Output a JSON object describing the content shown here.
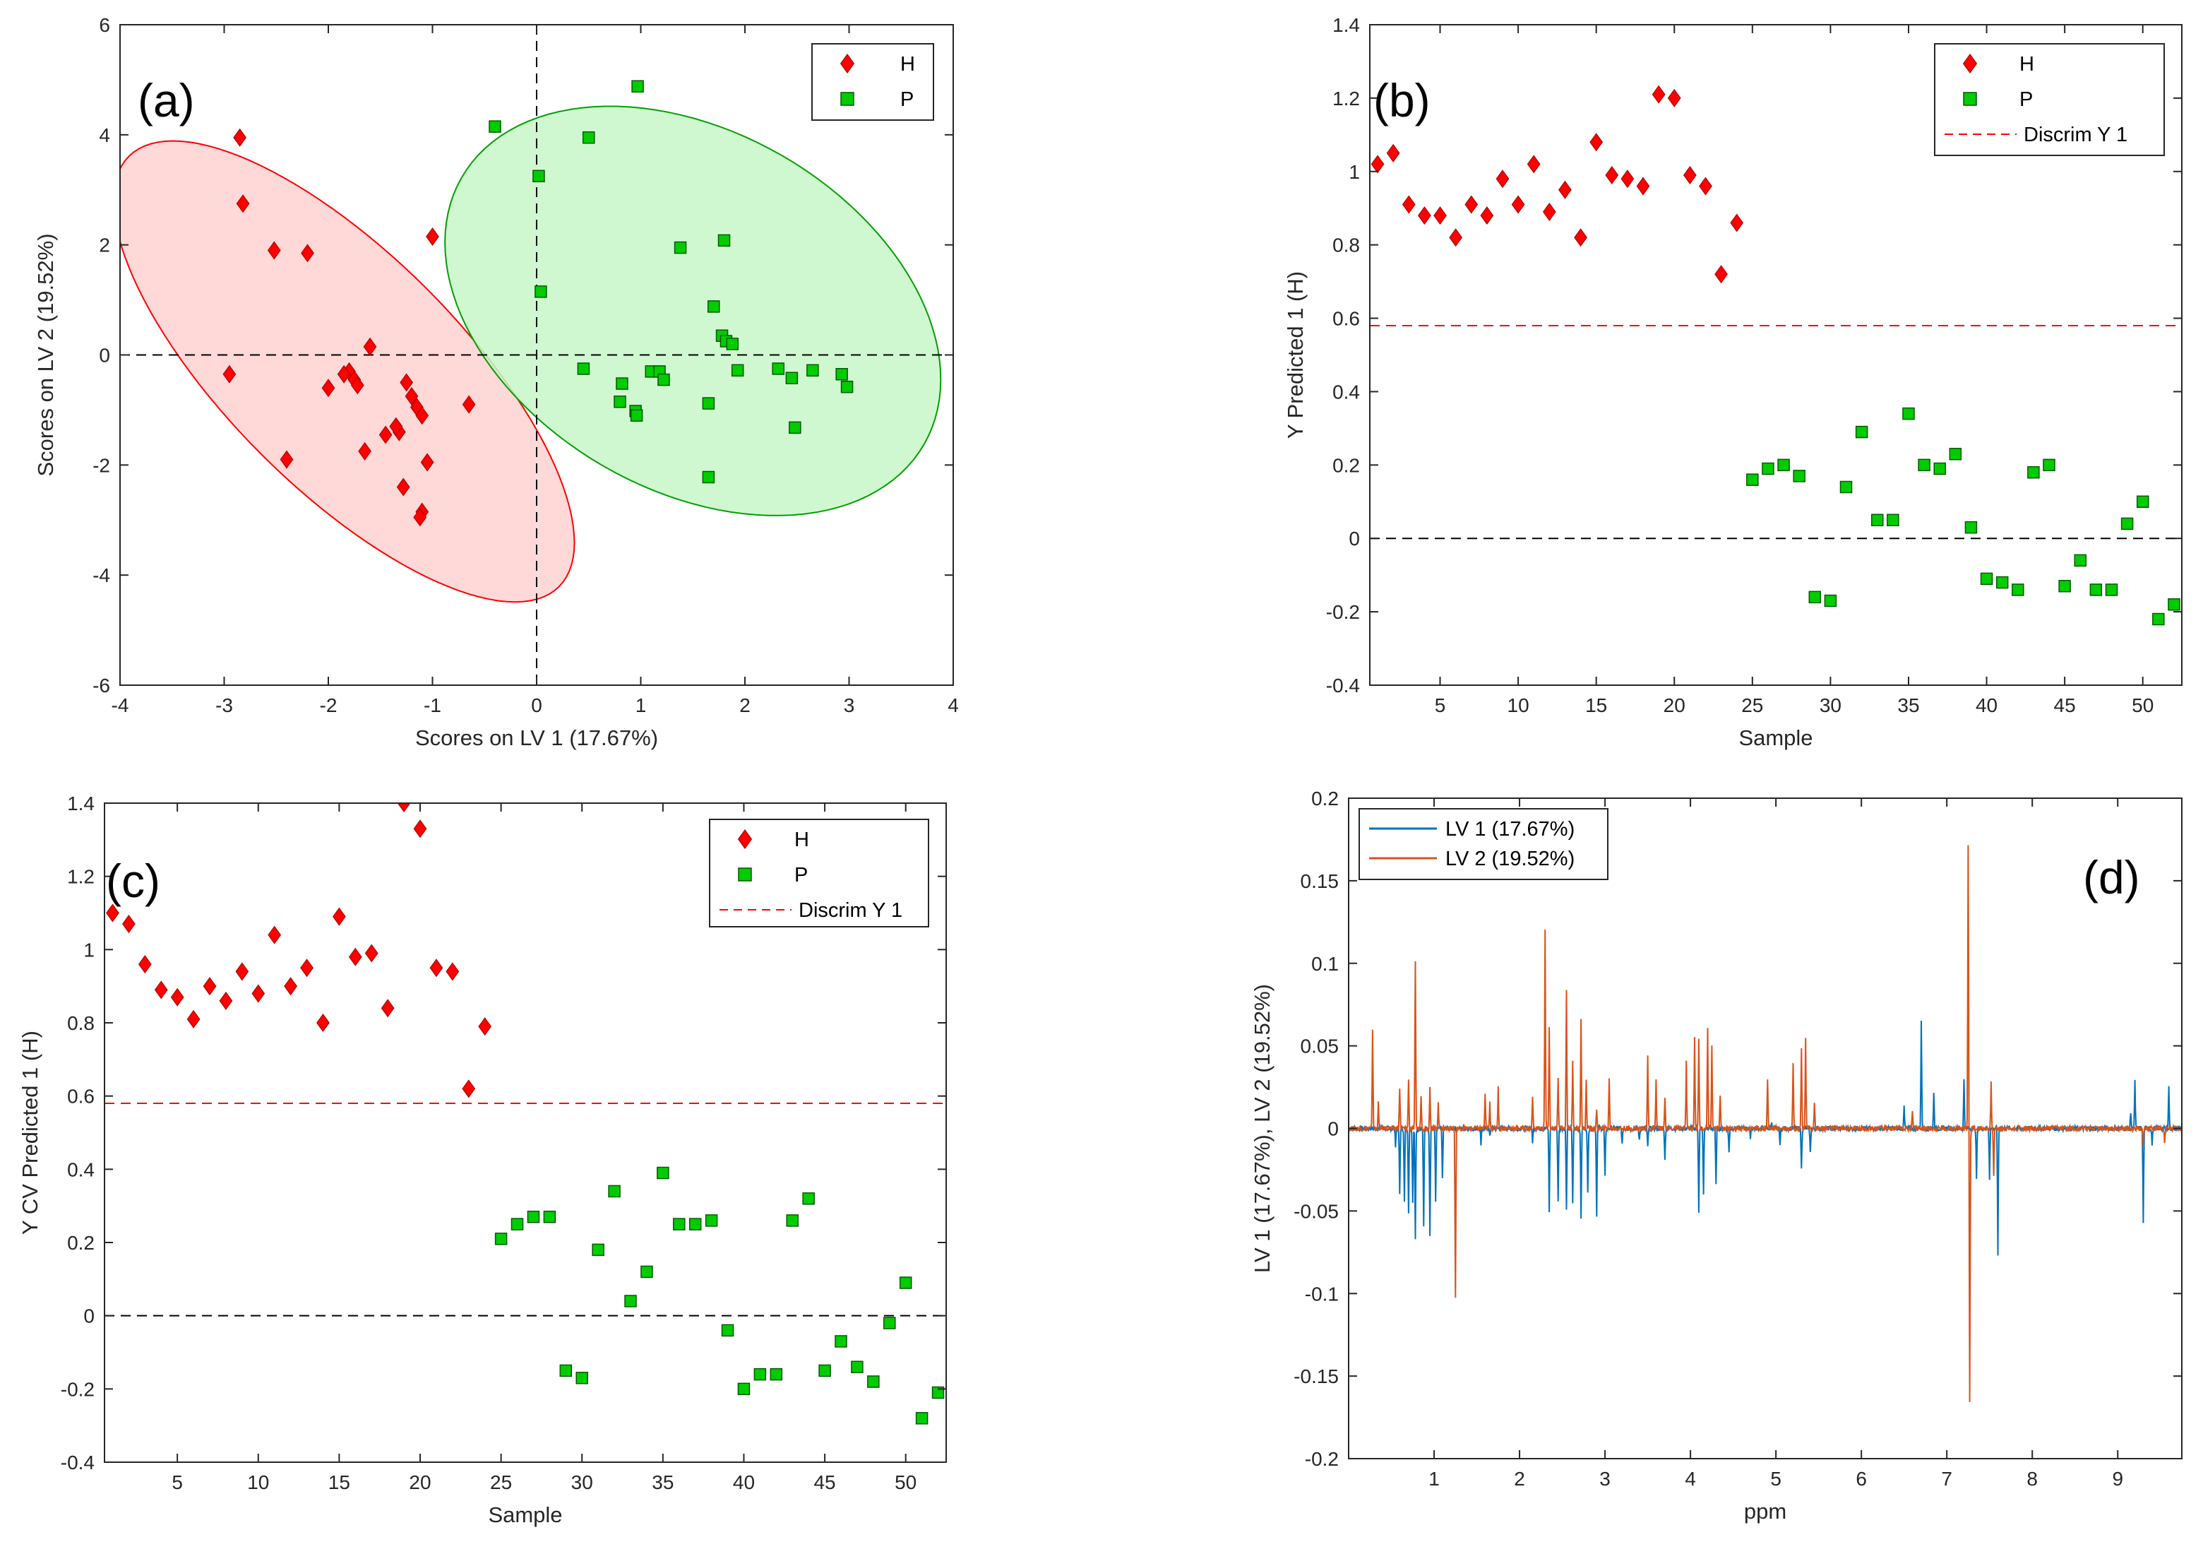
{
  "chart_data": [
    {
      "id": "a",
      "type": "scatter",
      "panel_label": "(a)",
      "xlabel": "Scores on LV 1 (17.67%)",
      "ylabel": "Scores on LV 2 (19.52%)",
      "xlim": [
        -4,
        4
      ],
      "ylim": [
        -6,
        6
      ],
      "xticks": [
        "-4",
        "-3",
        "-2",
        "-1",
        "0",
        "1",
        "2",
        "3",
        "4"
      ],
      "yticks": [
        "-6",
        "-4",
        "-2",
        "0",
        "2",
        "4",
        "6"
      ],
      "reference_lines": {
        "x": 0,
        "y": 0
      },
      "legend": [
        "H",
        "P"
      ],
      "ellipses": [
        {
          "group": "H",
          "color": "#ff0000",
          "fill": "#ffd1d1",
          "center": [
            -1.85,
            -0.3
          ],
          "rx": 1.47,
          "ry": 4.9,
          "angle_deg": 135
        },
        {
          "group": "P",
          "color": "#00a000",
          "fill": "#c8f7c8",
          "center": [
            1.5,
            0.8
          ],
          "rx": 2.25,
          "ry": 4.3,
          "angle_deg": 120
        }
      ],
      "series": [
        {
          "name": "H",
          "marker": "diamond",
          "color": "#ff0000",
          "x": [
            -2.85,
            -2.82,
            -2.52,
            -2.2,
            -2.4,
            -2.95,
            -1.8,
            -1.75,
            -1.72,
            -1.85,
            -1.6,
            -2.0,
            -1.65,
            -1.45,
            -1.35,
            -1.32,
            -1.28,
            -1.25,
            -1.2,
            -1.15,
            -1.1,
            -1.12,
            -1.05,
            -1.0,
            -0.65,
            -1.35,
            -1.1
          ],
          "y": [
            3.95,
            2.75,
            1.9,
            1.85,
            -1.9,
            -0.35,
            -0.3,
            -0.45,
            -0.55,
            -0.35,
            0.15,
            -0.6,
            -1.75,
            -1.45,
            -1.3,
            -1.4,
            -2.4,
            -0.5,
            -0.75,
            -0.95,
            -2.85,
            -2.95,
            -1.95,
            2.15,
            -0.9,
            -1.3,
            -1.1
          ]
        },
        {
          "name": "P",
          "marker": "square",
          "color": "#00cc00",
          "x": [
            -0.4,
            0.97,
            0.5,
            0.02,
            0.04,
            1.38,
            1.8,
            1.7,
            1.78,
            1.82,
            1.88,
            1.93,
            0.45,
            0.82,
            0.8,
            0.95,
            0.96,
            1.1,
            1.18,
            1.22,
            1.65,
            1.65,
            2.32,
            2.45,
            2.48,
            2.65,
            2.93,
            2.98
          ],
          "y": [
            4.15,
            4.88,
            3.95,
            3.25,
            1.15,
            1.95,
            2.08,
            0.88,
            0.35,
            0.25,
            0.2,
            -0.28,
            -0.25,
            -0.52,
            -0.85,
            -1.02,
            -1.1,
            -0.3,
            -0.3,
            -0.45,
            -0.88,
            -2.22,
            -0.25,
            -0.42,
            -1.32,
            -0.28,
            -0.35,
            -0.58
          ]
        }
      ]
    },
    {
      "id": "b",
      "type": "scatter",
      "panel_label": "(b)",
      "xlabel": "Sample",
      "ylabel": "Y Predicted 1 (H)",
      "xlim": [
        0.5,
        52.5
      ],
      "ylim": [
        -0.4,
        1.4
      ],
      "xticks": [
        "5",
        "10",
        "15",
        "20",
        "25",
        "30",
        "35",
        "40",
        "45",
        "50"
      ],
      "yticks": [
        "-0.4",
        "-0.2",
        "0",
        "0.2",
        "0.4",
        "0.6",
        "0.8",
        "1",
        "1.2",
        "1.4"
      ],
      "threshold": 0.58,
      "threshold_label": "Discrim Y 1",
      "legend": [
        "H",
        "P",
        "Discrim Y 1"
      ],
      "series": [
        {
          "name": "H",
          "marker": "diamond",
          "color": "#ff0000",
          "x": [
            1,
            2,
            3,
            4,
            5,
            6,
            7,
            8,
            9,
            10,
            11,
            12,
            13,
            14,
            15,
            16,
            17,
            18,
            19,
            20,
            21,
            22,
            23,
            24
          ],
          "y": [
            1.02,
            1.05,
            0.91,
            0.88,
            0.88,
            0.82,
            0.91,
            0.88,
            0.98,
            0.91,
            1.02,
            0.89,
            0.95,
            0.82,
            1.08,
            0.99,
            0.98,
            0.96,
            1.21,
            1.2,
            0.99,
            0.96,
            0.72,
            0.86
          ]
        },
        {
          "name": "P",
          "marker": "square",
          "color": "#00cc00",
          "x": [
            25,
            26,
            27,
            28,
            29,
            30,
            31,
            32,
            33,
            34,
            35,
            36,
            37,
            38,
            39,
            40,
            41,
            42,
            43,
            44,
            45,
            46,
            47,
            48,
            49,
            50,
            51,
            52
          ],
          "y": [
            0.16,
            0.19,
            0.2,
            0.17,
            -0.16,
            -0.17,
            0.14,
            0.29,
            0.05,
            0.05,
            0.34,
            0.2,
            0.19,
            0.23,
            0.03,
            -0.11,
            -0.12,
            -0.14,
            0.18,
            0.2,
            -0.13,
            -0.06,
            -0.14,
            -0.14,
            0.04,
            0.1,
            -0.22,
            -0.18
          ]
        }
      ]
    },
    {
      "id": "c",
      "type": "scatter",
      "panel_label": "(c)",
      "xlabel": "Sample",
      "ylabel": "Y CV Predicted 1 (H)",
      "xlim": [
        0.5,
        52.5
      ],
      "ylim": [
        -0.4,
        1.4
      ],
      "xticks": [
        "5",
        "10",
        "15",
        "20",
        "25",
        "30",
        "35",
        "40",
        "45",
        "50"
      ],
      "yticks": [
        "-0.4",
        "-0.2",
        "0",
        "0.2",
        "0.4",
        "0.6",
        "0.8",
        "1",
        "1.2",
        "1.4"
      ],
      "threshold": 0.58,
      "threshold_label": "Discrim Y 1",
      "legend": [
        "H",
        "P",
        "Discrim Y 1"
      ],
      "series": [
        {
          "name": "H",
          "marker": "diamond",
          "color": "#ff0000",
          "x": [
            1,
            2,
            3,
            4,
            5,
            6,
            7,
            8,
            9,
            10,
            11,
            12,
            13,
            14,
            15,
            16,
            17,
            18,
            19,
            20,
            21,
            22,
            23,
            24
          ],
          "y": [
            1.1,
            1.07,
            0.96,
            0.89,
            0.87,
            0.81,
            0.9,
            0.86,
            0.94,
            0.88,
            1.04,
            0.9,
            0.95,
            0.8,
            1.09,
            0.98,
            0.99,
            0.84,
            1.4,
            1.33,
            0.95,
            0.94,
            0.62,
            0.79
          ]
        },
        {
          "name": "P",
          "marker": "square",
          "color": "#00cc00",
          "x": [
            25,
            26,
            27,
            28,
            29,
            30,
            31,
            32,
            33,
            34,
            35,
            36,
            37,
            38,
            39,
            40,
            41,
            42,
            43,
            44,
            45,
            46,
            47,
            48,
            49,
            50,
            51,
            52
          ],
          "y": [
            0.21,
            0.25,
            0.27,
            0.27,
            -0.15,
            -0.17,
            0.18,
            0.34,
            0.04,
            0.12,
            0.39,
            0.25,
            0.25,
            0.26,
            -0.04,
            -0.2,
            -0.16,
            -0.16,
            0.26,
            0.32,
            -0.15,
            -0.07,
            -0.14,
            -0.18,
            -0.02,
            0.09,
            -0.28,
            -0.21
          ]
        }
      ]
    },
    {
      "id": "d",
      "type": "line",
      "panel_label": "(d)",
      "xlabel": "ppm",
      "ylabel": "LV 1 (17.67%), LV 2 (19.52%)",
      "xlim": [
        0,
        9.75
      ],
      "ylim": [
        -0.2,
        0.2
      ],
      "xticks": [
        "1",
        "2",
        "3",
        "4",
        "5",
        "6",
        "7",
        "8",
        "9"
      ],
      "yticks": [
        "-0.2",
        "-0.15",
        "-0.1",
        "-0.05",
        "0",
        "0.05",
        "0.1",
        "0.15",
        "0.2"
      ],
      "legend": [
        "LV 1 (17.67%)",
        "LV 2 (19.52%)"
      ],
      "series": [
        {
          "name": "LV 1 (17.67%)",
          "color": "#0072bd",
          "peaks": [
            [
              0.55,
              -0.01
            ],
            [
              0.6,
              -0.04
            ],
            [
              0.65,
              -0.045
            ],
            [
              0.7,
              -0.05
            ],
            [
              0.75,
              -0.045
            ],
            [
              0.78,
              -0.068
            ],
            [
              0.88,
              -0.06
            ],
            [
              0.95,
              -0.065
            ],
            [
              1.02,
              -0.045
            ],
            [
              1.1,
              -0.03
            ],
            [
              1.55,
              -0.01
            ],
            [
              1.65,
              -0.005
            ],
            [
              2.15,
              -0.008
            ],
            [
              2.35,
              -0.05
            ],
            [
              2.45,
              -0.045
            ],
            [
              2.55,
              -0.05
            ],
            [
              2.62,
              -0.045
            ],
            [
              2.72,
              -0.055
            ],
            [
              2.8,
              -0.04
            ],
            [
              2.9,
              -0.052
            ],
            [
              3.0,
              -0.03
            ],
            [
              3.2,
              -0.01
            ],
            [
              3.4,
              -0.008
            ],
            [
              3.5,
              -0.012
            ],
            [
              3.7,
              -0.02
            ],
            [
              4.1,
              -0.05
            ],
            [
              4.15,
              -0.04
            ],
            [
              4.3,
              -0.035
            ],
            [
              4.45,
              -0.015
            ],
            [
              4.7,
              -0.005
            ],
            [
              4.95,
              0.004
            ],
            [
              5.05,
              -0.01
            ],
            [
              5.3,
              -0.025
            ],
            [
              5.4,
              -0.015
            ],
            [
              6.5,
              0.015
            ],
            [
              6.7,
              0.065
            ],
            [
              6.85,
              0.022
            ],
            [
              7.2,
              0.03
            ],
            [
              7.35,
              -0.03
            ],
            [
              7.5,
              -0.03
            ],
            [
              7.6,
              -0.076
            ],
            [
              9.15,
              0.01
            ],
            [
              9.2,
              0.028
            ],
            [
              9.3,
              -0.058
            ],
            [
              9.4,
              -0.01
            ],
            [
              9.6,
              0.025
            ]
          ]
        },
        {
          "name": "LV 2 (19.52%)",
          "color": "#d95319",
          "peaks": [
            [
              0.28,
              0.06
            ],
            [
              0.35,
              0.015
            ],
            [
              0.6,
              0.025
            ],
            [
              0.7,
              0.03
            ],
            [
              0.78,
              0.1
            ],
            [
              0.85,
              0.02
            ],
            [
              0.95,
              0.025
            ],
            [
              1.05,
              0.015
            ],
            [
              1.25,
              -0.103
            ],
            [
              1.6,
              0.02
            ],
            [
              1.65,
              0.015
            ],
            [
              1.75,
              0.025
            ],
            [
              2.15,
              0.02
            ],
            [
              2.3,
              0.12
            ],
            [
              2.35,
              0.06
            ],
            [
              2.45,
              0.03
            ],
            [
              2.55,
              0.085
            ],
            [
              2.62,
              0.04
            ],
            [
              2.72,
              0.065
            ],
            [
              2.78,
              0.03
            ],
            [
              2.9,
              0.01
            ],
            [
              3.05,
              0.03
            ],
            [
              3.5,
              0.045
            ],
            [
              3.6,
              0.03
            ],
            [
              3.7,
              0.02
            ],
            [
              3.95,
              0.04
            ],
            [
              4.05,
              0.055
            ],
            [
              4.1,
              0.055
            ],
            [
              4.2,
              0.06
            ],
            [
              4.25,
              0.05
            ],
            [
              4.35,
              0.02
            ],
            [
              4.9,
              0.03
            ],
            [
              5.2,
              0.04
            ],
            [
              5.3,
              0.05
            ],
            [
              5.35,
              0.055
            ],
            [
              5.45,
              0.015
            ],
            [
              6.6,
              0.01
            ],
            [
              7.25,
              0.172
            ],
            [
              7.27,
              -0.165
            ],
            [
              7.52,
              0.027
            ],
            [
              7.55,
              -0.03
            ],
            [
              9.3,
              -0.01
            ],
            [
              9.55,
              -0.008
            ]
          ]
        }
      ]
    }
  ]
}
